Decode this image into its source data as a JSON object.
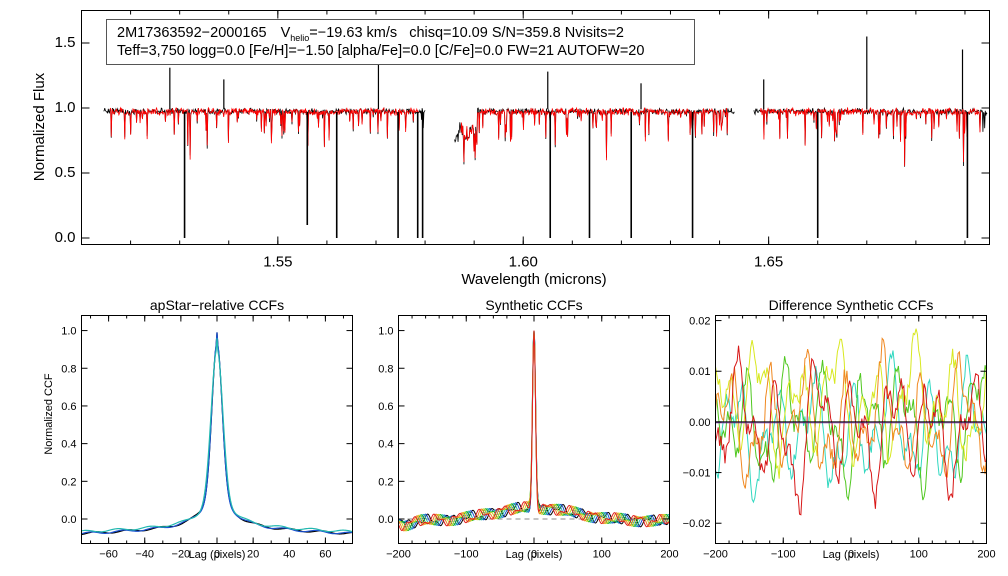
{
  "chart_data": [
    {
      "type": "line",
      "title": "",
      "xlabel": "Wavelength (microns)",
      "ylabel": "Normalized Flux",
      "xlim": [
        1.51,
        1.695
      ],
      "ylim": [
        -0.05,
        1.75
      ],
      "xticks": [
        1.55,
        1.6,
        1.65
      ],
      "xtick_labels": [
        "1.55",
        "1.60",
        "1.65"
      ],
      "yticks": [
        0.0,
        0.5,
        1.0,
        1.5
      ],
      "ytick_labels": [
        "0.0",
        "0.5",
        "1.0",
        "1.5"
      ],
      "annotation": {
        "id": "2M17363592−2000165",
        "v_prefix": "V",
        "v_sub": "helio",
        "v_value": "=−19.63 km/s",
        "line1_rest": "chisq=10.09  S/N=359.8  Nvisits=2",
        "line2": "Teff=3,750 logg=0.0 [Fe/H]=−1.50 [alpha/Fe]=0.0 [C/Fe]=0.0 FW=21 AUTOFW=20"
      },
      "series": [
        {
          "name": "observed",
          "color": "#000000"
        },
        {
          "name": "model",
          "color": "#ff0000"
        }
      ],
      "chips": [
        [
          1.5145,
          1.58
        ],
        [
          1.586,
          1.643
        ],
        [
          1.647,
          1.6945
        ]
      ],
      "spikes_down": [
        {
          "x": 1.531,
          "y": 0.0
        },
        {
          "x": 1.556,
          "y": 0.1
        },
        {
          "x": 1.562,
          "y": 0.0
        },
        {
          "x": 1.5745,
          "y": 0.0
        },
        {
          "x": 1.5785,
          "y": 0.0
        },
        {
          "x": 1.5795,
          "y": 0.0
        },
        {
          "x": 1.6055,
          "y": 0.0
        },
        {
          "x": 1.6135,
          "y": 0.0
        },
        {
          "x": 1.622,
          "y": 0.0
        },
        {
          "x": 1.6345,
          "y": 0.0
        },
        {
          "x": 1.66,
          "y": 0.0
        },
        {
          "x": 1.6905,
          "y": 0.0
        }
      ],
      "spikes_up": [
        {
          "x": 1.528,
          "y": 1.31
        },
        {
          "x": 1.539,
          "y": 1.22
        },
        {
          "x": 1.5705,
          "y": 1.4
        },
        {
          "x": 1.605,
          "y": 1.28
        },
        {
          "x": 1.624,
          "y": 1.19
        },
        {
          "x": 1.649,
          "y": 1.22
        },
        {
          "x": 1.67,
          "y": 1.55
        },
        {
          "x": 1.6895,
          "y": 1.45
        }
      ]
    },
    {
      "type": "line",
      "title": "apStar−relative CCFs",
      "xlabel": "Lag (pixels)",
      "ylabel": "Normalized CCF",
      "xlim": [
        -75,
        75
      ],
      "ylim": [
        -0.13,
        1.08
      ],
      "xticks": [
        -60,
        -40,
        -20,
        0,
        20,
        40,
        60
      ],
      "xtick_labels": [
        "−60",
        "−40",
        "−20",
        "0",
        "20",
        "40",
        "60"
      ],
      "yticks": [
        0.0,
        0.2,
        0.4,
        0.6,
        0.8,
        1.0
      ],
      "ytick_labels": [
        "0.0",
        "0.2",
        "0.4",
        "0.6",
        "0.8",
        "1.0"
      ],
      "series": [
        {
          "name": "ccf-black",
          "color": "#000000",
          "peak": 0.99,
          "width": 2.8,
          "base": -0.08,
          "wing": 0.17
        },
        {
          "name": "ccf-blue",
          "color": "#1a50d0",
          "peak": 0.99,
          "width": 2.8,
          "base": -0.08,
          "wing": 0.17
        },
        {
          "name": "ccf-cyan",
          "color": "#22b8b0",
          "peak": 0.96,
          "width": 3.2,
          "base": -0.07,
          "wing": 0.15
        }
      ]
    },
    {
      "type": "line",
      "title": "Synthetic CCFs",
      "xlabel": "Lag (pixels)",
      "ylabel": "",
      "xlim": [
        -200,
        200
      ],
      "ylim": [
        -0.13,
        1.08
      ],
      "xticks": [
        -200,
        -100,
        0,
        100,
        200
      ],
      "xtick_labels": [
        "−200",
        "−100",
        "0",
        "100",
        "200"
      ],
      "yticks": [
        0.0,
        0.2,
        0.4,
        0.6,
        0.8,
        1.0
      ],
      "ytick_labels": [
        "0.0",
        "0.2",
        "0.4",
        "0.6",
        "0.8",
        "1.0"
      ],
      "zero_line": "dashed",
      "series": [
        {
          "name": "syn-1",
          "color": "#000000"
        },
        {
          "name": "syn-2",
          "color": "#1a50d0"
        },
        {
          "name": "syn-3",
          "color": "#22b8b0"
        },
        {
          "name": "syn-4",
          "color": "#20b020"
        },
        {
          "name": "syn-5",
          "color": "#c8d820"
        },
        {
          "name": "syn-6",
          "color": "#f08020"
        },
        {
          "name": "syn-7",
          "color": "#e02020"
        }
      ]
    },
    {
      "type": "line",
      "title": "Difference Synthetic CCFs",
      "xlabel": "Lag (pixels)",
      "ylabel": "",
      "xlim": [
        -200,
        200
      ],
      "ylim": [
        -0.024,
        0.021
      ],
      "xticks": [
        -200,
        -100,
        0,
        100,
        200
      ],
      "xtick_labels": [
        "−200",
        "−100",
        "0",
        "100",
        "200"
      ],
      "yticks": [
        -0.02,
        -0.01,
        0.0,
        0.01,
        0.02
      ],
      "ytick_labels": [
        "−0.02",
        "−0.01",
        "0.00",
        "0.01",
        "0.02"
      ],
      "zero_line": "solid",
      "series": [
        {
          "name": "diff-zero",
          "color": "#000000"
        },
        {
          "name": "diff-cyan",
          "color": "#30d8c0"
        },
        {
          "name": "diff-green",
          "color": "#50c820"
        },
        {
          "name": "diff-yellow",
          "color": "#d8e820"
        },
        {
          "name": "diff-orange",
          "color": "#f08820"
        },
        {
          "name": "diff-red",
          "color": "#d81818"
        }
      ]
    }
  ]
}
